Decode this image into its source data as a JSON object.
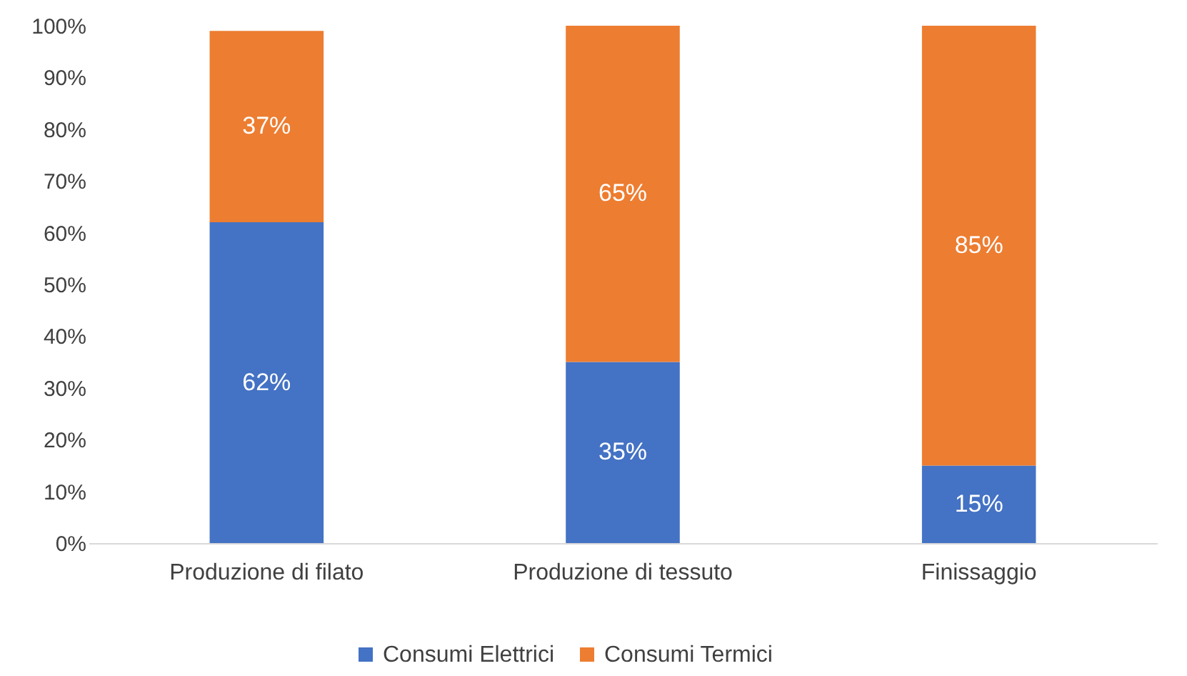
{
  "chart_data": {
    "type": "bar",
    "stacked": true,
    "categories": [
      "Produzione di filato",
      "Produzione di tessuto",
      "Finissaggio"
    ],
    "series": [
      {
        "name": "Consumi Elettrici",
        "color": "#4472c4",
        "values": [
          62,
          35,
          15
        ],
        "value_labels": [
          "62%",
          "35%",
          "15%"
        ]
      },
      {
        "name": "Consumi Termici",
        "color": "#ed7d31",
        "values": [
          37,
          65,
          85
        ],
        "value_labels": [
          "37%",
          "65%",
          "85%"
        ]
      }
    ],
    "ylim": [
      0,
      100
    ],
    "yticks": [
      {
        "value": 0,
        "label": "0%"
      },
      {
        "value": 10,
        "label": "10%"
      },
      {
        "value": 20,
        "label": "20%"
      },
      {
        "value": 30,
        "label": "30%"
      },
      {
        "value": 40,
        "label": "40%"
      },
      {
        "value": 50,
        "label": "50%"
      },
      {
        "value": 60,
        "label": "60%"
      },
      {
        "value": 70,
        "label": "70%"
      },
      {
        "value": 80,
        "label": "80%"
      },
      {
        "value": 90,
        "label": "90%"
      },
      {
        "value": 100,
        "label": "100%"
      }
    ],
    "grid": false,
    "legend": "bottom"
  }
}
